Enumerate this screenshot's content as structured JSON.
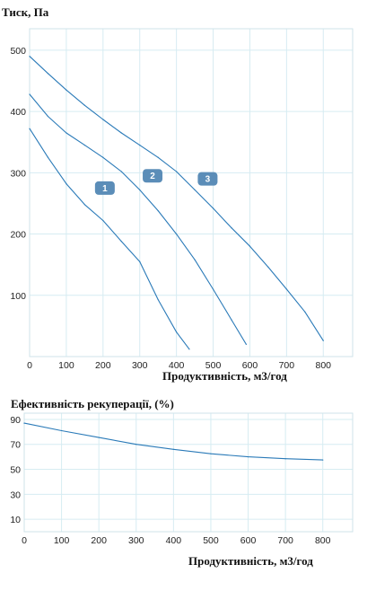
{
  "chart_data": [
    {
      "type": "line",
      "title": "Тиск, Па",
      "xlabel": "Продуктивність, м3/год",
      "ylabel": "",
      "xlim": [
        0,
        880
      ],
      "ylim": [
        0,
        535
      ],
      "x_ticks": [
        "0",
        "100",
        "200",
        "300",
        "400",
        "500",
        "600",
        "700",
        "800"
      ],
      "y_ticks": [
        "100",
        "200",
        "300",
        "400",
        "500"
      ],
      "grid": true,
      "line_color": "#2a7ab8",
      "badge_color": "#5b8db8",
      "series": [
        {
          "name": "1",
          "points": [
            [
              0,
              372
            ],
            [
              50,
              325
            ],
            [
              100,
              282
            ],
            [
              150,
              248
            ],
            [
              200,
              222
            ],
            [
              250,
              188
            ],
            [
              300,
              155
            ],
            [
              350,
              93
            ],
            [
              400,
              40
            ],
            [
              435,
              12
            ]
          ]
        },
        {
          "name": "2",
          "points": [
            [
              0,
              428
            ],
            [
              50,
              392
            ],
            [
              100,
              365
            ],
            [
              150,
              345
            ],
            [
              200,
              325
            ],
            [
              250,
              302
            ],
            [
              300,
              272
            ],
            [
              350,
              238
            ],
            [
              400,
              200
            ],
            [
              450,
              158
            ],
            [
              500,
              110
            ],
            [
              550,
              60
            ],
            [
              590,
              20
            ]
          ]
        },
        {
          "name": "3",
          "points": [
            [
              0,
              490
            ],
            [
              50,
              462
            ],
            [
              100,
              435
            ],
            [
              150,
              410
            ],
            [
              200,
              387
            ],
            [
              250,
              365
            ],
            [
              300,
              345
            ],
            [
              350,
              325
            ],
            [
              400,
              302
            ],
            [
              450,
              272
            ],
            [
              500,
              242
            ],
            [
              550,
              210
            ],
            [
              600,
              180
            ],
            [
              650,
              146
            ],
            [
              700,
              110
            ],
            [
              750,
              73
            ],
            [
              800,
              26
            ]
          ]
        }
      ],
      "labels": [
        {
          "text": "1",
          "x": 205,
          "y": 275
        },
        {
          "text": "2",
          "x": 335,
          "y": 295
        },
        {
          "text": "3",
          "x": 485,
          "y": 290
        }
      ]
    },
    {
      "type": "line",
      "title": "Ефективність рекуперації, (%)",
      "xlabel": "Продуктивність, м3/год",
      "ylabel": "",
      "xlim": [
        0,
        880
      ],
      "ylim": [
        0,
        95
      ],
      "x_ticks": [
        "0",
        "100",
        "200",
        "300",
        "400",
        "500",
        "600",
        "700",
        "800"
      ],
      "y_ticks": [
        "10",
        "30",
        "50",
        "70",
        "90"
      ],
      "grid": true,
      "line_color": "#2a7ab8",
      "series": [
        {
          "points": [
            [
              0,
              87
            ],
            [
              100,
              81
            ],
            [
              200,
              75.5
            ],
            [
              300,
              70
            ],
            [
              400,
              66
            ],
            [
              500,
              62.5
            ],
            [
              600,
              60
            ],
            [
              700,
              58.5
            ],
            [
              800,
              57.5
            ]
          ]
        }
      ]
    }
  ]
}
